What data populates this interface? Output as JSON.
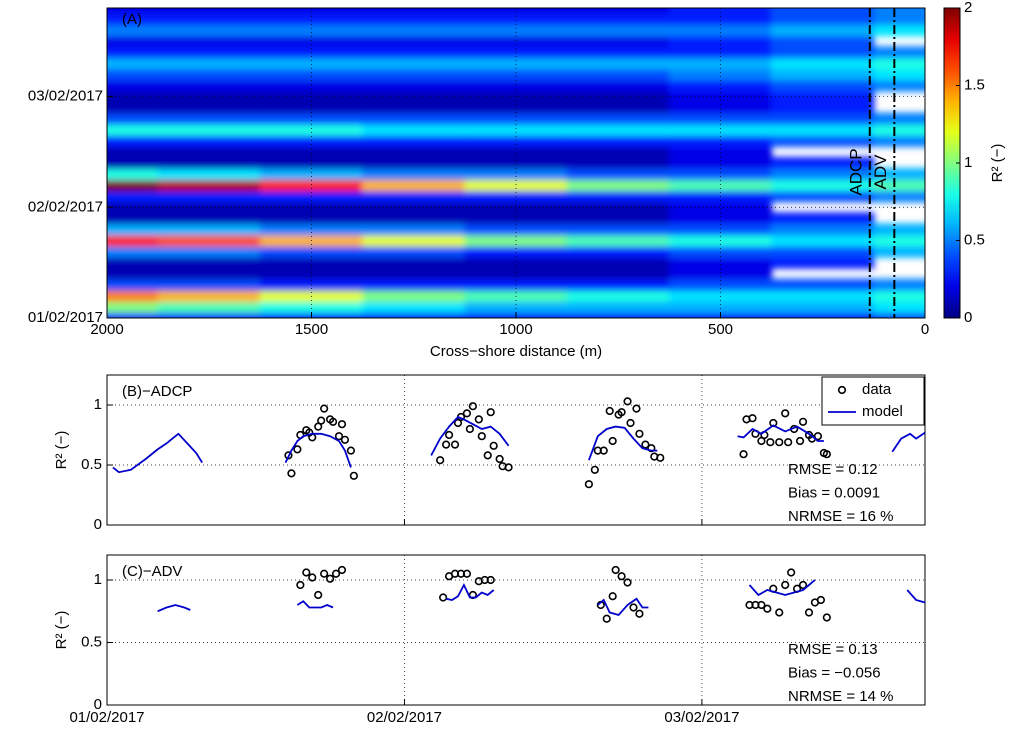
{
  "chart_data": [
    {
      "type": "heatmap",
      "panel_label": "(A)",
      "xlabel": "Cross−shore distance (m)",
      "x": [
        2000,
        1750,
        1500,
        1250,
        1000,
        750,
        500,
        250,
        0
      ],
      "y": [
        0,
        0.1,
        0.2,
        0.3,
        0.4,
        0.5,
        0.6,
        0.7,
        0.8,
        0.9,
        1.0,
        1.1,
        1.2,
        1.3,
        1.4,
        1.5,
        1.6,
        1.7,
        1.8,
        1.9,
        2.0,
        2.1,
        2.2,
        2.3,
        2.4,
        2.5,
        2.6,
        2.7,
        2.8
      ],
      "z": [
        [
          0.3,
          0.3,
          0.3,
          0.3,
          0.3,
          0.3,
          0.3,
          0.3,
          0.4
        ],
        [
          1.0,
          0.9,
          0.8,
          0.7,
          0.6,
          0.6,
          0.6,
          0.6,
          0.7
        ],
        [
          1.5,
          1.4,
          1.2,
          1.0,
          0.9,
          0.8,
          0.7,
          0.7,
          0.8
        ],
        [
          0.4,
          0.4,
          0.3,
          0.3,
          0.3,
          0.3,
          0.4,
          0.4,
          0.5
        ],
        [
          0.1,
          0.1,
          0.1,
          0.1,
          0.1,
          0.1,
          0.2,
          null,
          null
        ],
        [
          0.1,
          0.1,
          0.1,
          0.1,
          0.1,
          0.1,
          0.2,
          0.3,
          null
        ],
        [
          0.5,
          0.5,
          0.4,
          0.4,
          0.3,
          0.3,
          0.4,
          0.4,
          0.6
        ],
        [
          1.7,
          1.6,
          1.4,
          1.2,
          1.0,
          0.9,
          0.8,
          0.7,
          0.8
        ],
        [
          0.6,
          0.6,
          0.5,
          0.5,
          0.4,
          0.4,
          0.4,
          0.5,
          0.6
        ],
        [
          0.1,
          0.1,
          0.1,
          0.1,
          0.1,
          0.1,
          0.2,
          0.3,
          null
        ],
        [
          0.1,
          0.1,
          0.1,
          0.1,
          0.1,
          0.1,
          0.2,
          null,
          null
        ],
        [
          0.3,
          0.3,
          0.3,
          0.3,
          0.3,
          0.3,
          0.3,
          0.4,
          0.5
        ],
        [
          2.0,
          1.9,
          1.7,
          1.4,
          1.2,
          1.0,
          0.9,
          0.8,
          0.9
        ],
        [
          0.8,
          0.7,
          0.6,
          0.5,
          0.5,
          0.4,
          0.4,
          0.5,
          0.6
        ],
        [
          0.1,
          0.1,
          0.1,
          0.1,
          0.1,
          0.1,
          0.2,
          0.3,
          null
        ],
        [
          0.1,
          0.1,
          0.1,
          0.1,
          0.1,
          0.1,
          0.2,
          null,
          null
        ],
        [
          0.3,
          0.3,
          0.3,
          0.3,
          0.3,
          0.3,
          0.3,
          0.4,
          0.5
        ],
        [
          0.8,
          0.8,
          0.8,
          0.7,
          0.7,
          0.7,
          0.7,
          0.7,
          0.8
        ],
        [
          0.4,
          0.4,
          0.4,
          0.4,
          0.4,
          0.4,
          0.4,
          0.4,
          0.5
        ],
        [
          0.1,
          0.1,
          0.1,
          0.1,
          0.1,
          0.1,
          0.2,
          0.3,
          null
        ],
        [
          0.1,
          0.1,
          0.1,
          0.1,
          0.1,
          0.1,
          0.2,
          0.3,
          null
        ],
        [
          0.2,
          0.2,
          0.2,
          0.2,
          0.2,
          0.2,
          0.3,
          0.4,
          0.5
        ],
        [
          0.4,
          0.4,
          0.4,
          0.4,
          0.4,
          0.4,
          0.5,
          0.6,
          0.7
        ],
        [
          0.6,
          0.6,
          0.6,
          0.6,
          0.6,
          0.6,
          0.6,
          0.7,
          0.8
        ],
        [
          0.3,
          0.3,
          0.3,
          0.3,
          0.3,
          0.3,
          0.3,
          0.4,
          0.5
        ],
        [
          0.2,
          0.2,
          0.2,
          0.2,
          0.2,
          0.2,
          0.3,
          0.4,
          null
        ],
        [
          0.5,
          0.5,
          0.5,
          0.5,
          0.5,
          0.5,
          0.5,
          0.6,
          0.7
        ],
        [
          0.3,
          0.3,
          0.3,
          0.3,
          0.3,
          0.3,
          0.3,
          0.4,
          0.5
        ],
        [
          0.2,
          0.2,
          0.2,
          0.2,
          0.2,
          0.2,
          0.3,
          0.4,
          0.5
        ]
      ],
      "xlim": [
        2000,
        0
      ],
      "xticks": [
        2000,
        1500,
        1000,
        500,
        0
      ],
      "ylim": [
        0,
        2.8
      ],
      "yticks": [
        {
          "value": 0,
          "label": "01/02/2017"
        },
        {
          "value": 1,
          "label": "02/02/2017"
        },
        {
          "value": 2,
          "label": "03/02/2017"
        }
      ],
      "grid": true,
      "colormap": "jet",
      "colorbar": {
        "label": "R² (−)",
        "clim": [
          0,
          2
        ],
        "ticks": [
          0,
          0.5,
          1,
          1.5,
          2
        ]
      },
      "vlines": [
        {
          "x": 135,
          "label": "ADCP"
        },
        {
          "x": 75,
          "label": "ADV"
        }
      ]
    },
    {
      "type": "line",
      "panel_label": "(B)−ADCP",
      "ylabel": "R² (−)",
      "xlim": [
        0,
        2.75
      ],
      "xticks": [
        0,
        1,
        2
      ],
      "ylim": [
        0,
        1.25
      ],
      "yticks": [
        0,
        0.5,
        1
      ],
      "grid": true,
      "legend": "upper right",
      "annotations": [
        "RMSE = 0.12",
        "Bias = 0.0091",
        "NRMSE = 16 %"
      ],
      "series": [
        {
          "name": "data",
          "style": "markers",
          "color": "#000000",
          "x": [
            0.61,
            0.62,
            0.64,
            0.65,
            0.67,
            0.68,
            0.69,
            0.71,
            0.72,
            0.73,
            0.75,
            0.76,
            0.78,
            0.79,
            0.8,
            0.82,
            0.83,
            1.12,
            1.14,
            1.15,
            1.17,
            1.18,
            1.19,
            1.21,
            1.22,
            1.23,
            1.25,
            1.26,
            1.28,
            1.29,
            1.3,
            1.32,
            1.33,
            1.35,
            1.62,
            1.64,
            1.65,
            1.67,
            1.69,
            1.7,
            1.72,
            1.73,
            1.75,
            1.76,
            1.78,
            1.79,
            1.81,
            1.83,
            1.84,
            1.86,
            2.14,
            2.15,
            2.17,
            2.18,
            2.2,
            2.21,
            2.23,
            2.24,
            2.26,
            2.28,
            2.29,
            2.31,
            2.33,
            2.34,
            2.36,
            2.37,
            2.39,
            2.41,
            2.42
          ],
          "values": [
            0.58,
            0.43,
            0.63,
            0.75,
            0.79,
            0.77,
            0.73,
            0.82,
            0.87,
            0.97,
            0.88,
            0.86,
            0.74,
            0.84,
            0.71,
            0.62,
            0.41,
            0.54,
            0.67,
            0.75,
            0.67,
            0.85,
            0.9,
            0.93,
            0.8,
            0.99,
            0.88,
            0.74,
            0.58,
            0.94,
            0.66,
            0.55,
            0.49,
            0.48,
            0.34,
            0.46,
            0.62,
            0.62,
            0.95,
            0.7,
            0.92,
            0.94,
            1.03,
            0.85,
            0.97,
            0.76,
            0.67,
            0.64,
            0.57,
            0.56,
            0.59,
            0.88,
            0.89,
            0.76,
            0.7,
            0.75,
            0.69,
            0.85,
            0.69,
            0.93,
            0.69,
            0.8,
            0.7,
            0.86,
            0.75,
            0.72,
            0.74,
            0.6,
            0.59
          ]
        },
        {
          "name": "model",
          "style": "line",
          "color": "#0000cc",
          "x": [
            0.02,
            0.04,
            0.08,
            0.13,
            0.17,
            0.2,
            0.22,
            0.24,
            0.27,
            0.3,
            0.32,
            0.46,
            0.6,
            0.62,
            0.64,
            0.66,
            0.69,
            0.72,
            0.75,
            0.78,
            0.8,
            0.82,
            0.95,
            1.09,
            1.12,
            1.15,
            1.18,
            1.2,
            1.23,
            1.26,
            1.29,
            1.32,
            1.35,
            1.48,
            1.62,
            1.65,
            1.68,
            1.71,
            1.74,
            1.77,
            1.8,
            1.83,
            1.85,
            2.0,
            2.12,
            2.14,
            2.17,
            2.2,
            2.24,
            2.28,
            2.32,
            2.36,
            2.39,
            2.41,
            2.52,
            2.64,
            2.67,
            2.7,
            2.72,
            2.75
          ],
          "values": [
            0.48,
            0.44,
            0.46,
            0.55,
            0.63,
            0.68,
            0.72,
            0.76,
            0.68,
            0.6,
            0.52,
            null,
            0.52,
            0.62,
            0.7,
            0.74,
            0.76,
            0.76,
            0.74,
            0.7,
            0.62,
            0.48,
            null,
            0.58,
            0.72,
            0.82,
            0.9,
            0.88,
            0.84,
            0.8,
            0.82,
            0.76,
            0.66,
            null,
            0.54,
            0.74,
            0.8,
            0.82,
            0.81,
            0.72,
            0.64,
            0.62,
            0.62,
            null,
            0.74,
            0.73,
            0.8,
            0.76,
            0.83,
            0.78,
            0.82,
            0.76,
            0.7,
            0.7,
            null,
            0.61,
            0.72,
            0.76,
            0.72,
            0.77
          ]
        }
      ]
    },
    {
      "type": "line",
      "panel_label": "(C)−ADV",
      "ylabel": "R² (−)",
      "xlim": [
        0,
        2.75
      ],
      "xticks": [
        {
          "value": 0,
          "label": "01/02/2017"
        },
        {
          "value": 1,
          "label": "02/02/2017"
        },
        {
          "value": 2,
          "label": "03/02/2017"
        }
      ],
      "ylim": [
        0,
        1.2
      ],
      "yticks": [
        0,
        0.5,
        1
      ],
      "grid": true,
      "annotations": [
        "RMSE = 0.13",
        "Bias = −0.056",
        "NRMSE = 14 %"
      ],
      "series": [
        {
          "name": "data",
          "style": "markers",
          "color": "#000000",
          "x": [
            0.65,
            0.67,
            0.69,
            0.71,
            0.73,
            0.75,
            0.77,
            0.79,
            1.13,
            1.15,
            1.17,
            1.19,
            1.21,
            1.23,
            1.25,
            1.27,
            1.29,
            1.66,
            1.68,
            1.7,
            1.71,
            1.73,
            1.75,
            1.77,
            1.79,
            2.16,
            2.18,
            2.2,
            2.22,
            2.24,
            2.26,
            2.28,
            2.3,
            2.32,
            2.34,
            2.36,
            2.38,
            2.4,
            2.42
          ],
          "values": [
            0.96,
            1.06,
            1.02,
            0.88,
            1.05,
            1.01,
            1.05,
            1.08,
            0.86,
            1.03,
            1.05,
            1.05,
            1.05,
            0.88,
            0.99,
            1.0,
            1.0,
            0.8,
            0.69,
            0.87,
            1.08,
            1.03,
            0.98,
            0.78,
            0.73,
            0.8,
            0.8,
            0.8,
            0.77,
            0.93,
            0.74,
            0.96,
            1.06,
            0.93,
            0.96,
            0.74,
            0.82,
            0.84,
            0.7
          ]
        },
        {
          "name": "model",
          "style": "line",
          "color": "#0000cc",
          "x": [
            0.17,
            0.2,
            0.23,
            0.26,
            0.28,
            0.45,
            0.64,
            0.66,
            0.68,
            0.72,
            0.74,
            0.76,
            0.95,
            1.14,
            1.16,
            1.18,
            1.2,
            1.22,
            1.24,
            1.26,
            1.28,
            1.3,
            1.48,
            1.65,
            1.67,
            1.69,
            1.72,
            1.75,
            1.78,
            1.8,
            1.82,
            2.0,
            2.16,
            2.19,
            2.22,
            2.25,
            2.28,
            2.31,
            2.34,
            2.36,
            2.38,
            2.55,
            2.69,
            2.72,
            2.75
          ],
          "values": [
            0.75,
            0.78,
            0.8,
            0.78,
            0.76,
            null,
            0.8,
            0.83,
            0.78,
            0.78,
            0.8,
            0.78,
            null,
            0.85,
            0.84,
            0.87,
            0.96,
            0.86,
            0.86,
            0.9,
            0.88,
            0.92,
            null,
            0.8,
            0.84,
            0.74,
            0.72,
            0.8,
            0.85,
            0.78,
            0.78,
            null,
            0.96,
            0.88,
            0.92,
            0.9,
            0.88,
            0.9,
            0.92,
            0.96,
            1.0,
            null,
            0.92,
            0.84,
            0.82
          ]
        }
      ]
    }
  ]
}
